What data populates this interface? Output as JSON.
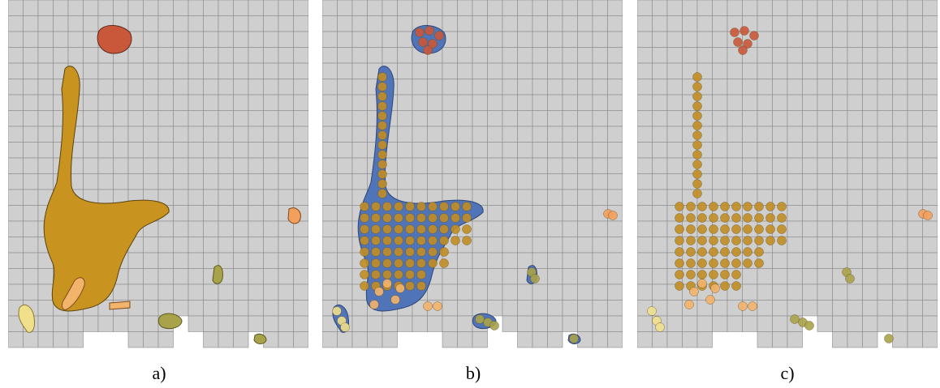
{
  "panels": [
    {
      "id": "a",
      "caption": "a)"
    },
    {
      "id": "b",
      "caption": "b)"
    },
    {
      "id": "c",
      "caption": "c)"
    }
  ],
  "grid_style": {
    "cell_fill": "#cfcfcf",
    "cell_stroke": "#8a8a8a"
  },
  "colors": {
    "main_region": "#c8941f",
    "main_region_stroke": "#5a4210",
    "top_region": "#c9573a",
    "blue_region": "#4f74b8",
    "dot_main": "#c08d25",
    "dot_light": "#f2b36a",
    "dot_pale": "#f0e08c",
    "dot_olive": "#a8a24a",
    "dot_orange": "#f3a05c"
  }
}
